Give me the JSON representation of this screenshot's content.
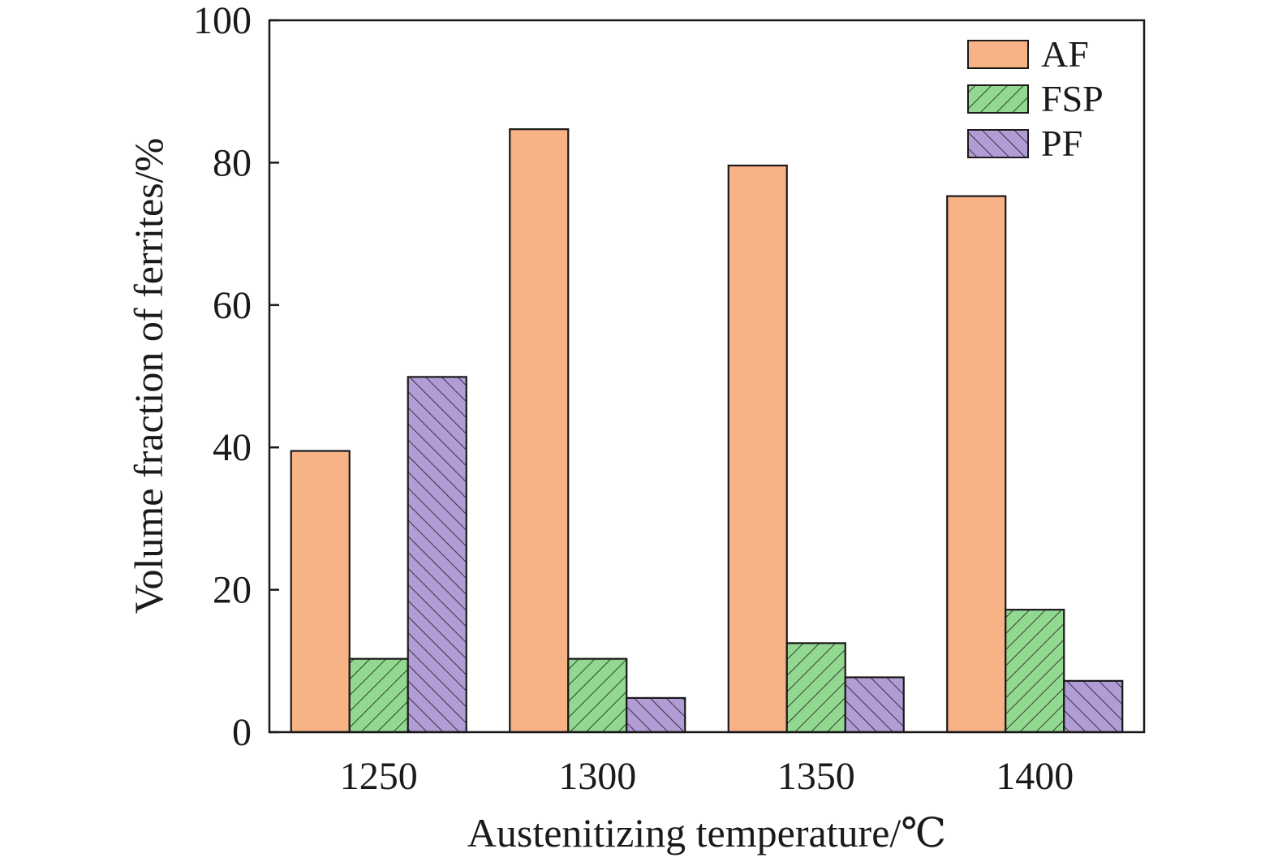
{
  "chart_data": {
    "type": "bar",
    "xlabel": "Austenitizing temperature/℃",
    "ylabel": "Volume fraction of ferrites/%",
    "categories": [
      "1250",
      "1300",
      "1350",
      "1400"
    ],
    "ylim": [
      0,
      100
    ],
    "yticks": [
      0,
      20,
      40,
      60,
      80,
      100
    ],
    "series": [
      {
        "name": "AF",
        "values": [
          39.5,
          84.7,
          79.6,
          75.3
        ],
        "color": "#F7B286",
        "pattern": "solid"
      },
      {
        "name": "FSP",
        "values": [
          10.3,
          10.3,
          12.5,
          17.2
        ],
        "color": "#93D891",
        "pattern": "hatch-forward"
      },
      {
        "name": "PF",
        "values": [
          49.9,
          4.8,
          7.7,
          7.2
        ],
        "color": "#B19CD6",
        "pattern": "hatch-backward"
      }
    ],
    "legend_position": "top-right",
    "grid": false
  }
}
